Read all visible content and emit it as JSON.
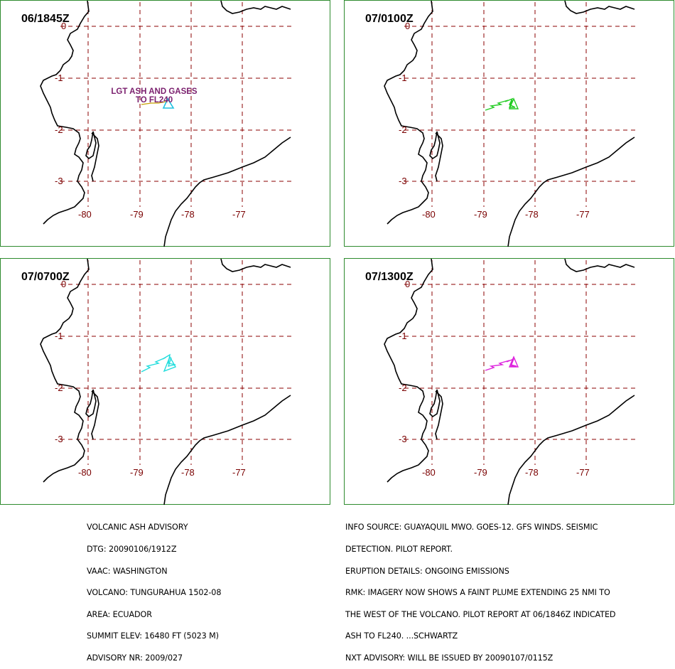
{
  "panels": [
    {
      "time": "06/1845Z",
      "plume_color": "#20c0e0",
      "label_line1": "LGT ASH AND GASES",
      "label_line2": "TO FL240"
    },
    {
      "time": "07/0100Z",
      "plume_color": "#22cc22"
    },
    {
      "time": "07/0700Z",
      "plume_color": "#22dddd"
    },
    {
      "time": "07/1300Z",
      "plume_color": "#dd22dd"
    }
  ],
  "axis": {
    "lat_labels": [
      "0",
      "-1",
      "-2",
      "-3"
    ],
    "lon_labels": [
      "-80",
      "-79",
      "-78",
      "-77"
    ]
  },
  "colors": {
    "grid": "#8b0000",
    "coast": "#000000",
    "border": "#2e8b2e",
    "tick_text": "#7a0000"
  },
  "advisory_left": [
    "VOLCANIC ASH ADVISORY",
    "DTG: 20090106/1912Z",
    "VAAC: WASHINGTON",
    "VOLCANO: TUNGURAHUA 1502-08",
    "AREA: ECUADOR",
    "SUMMIT ELEV: 16480 FT (5023 M)",
    "ADVISORY NR: 2009/027"
  ],
  "advisory_right": [
    "INFO SOURCE: GUAYAQUIL MWO. GOES-12. GFS WINDS. SEISMIC",
    "DETECTION. PILOT REPORT.",
    "ERUPTION DETAILS: ONGOING EMISSIONS",
    "RMK: IMAGERY NOW SHOWS A FAINT PLUME EXTENDING 25 NMI TO",
    "THE WEST OF THE VOLCANO. PILOT REPORT AT 06/1846Z INDICATED",
    "ASH TO FL240. ...SCHWARTZ",
    "NXT ADVISORY: WILL BE ISSUED BY 20090107/0115Z"
  ]
}
